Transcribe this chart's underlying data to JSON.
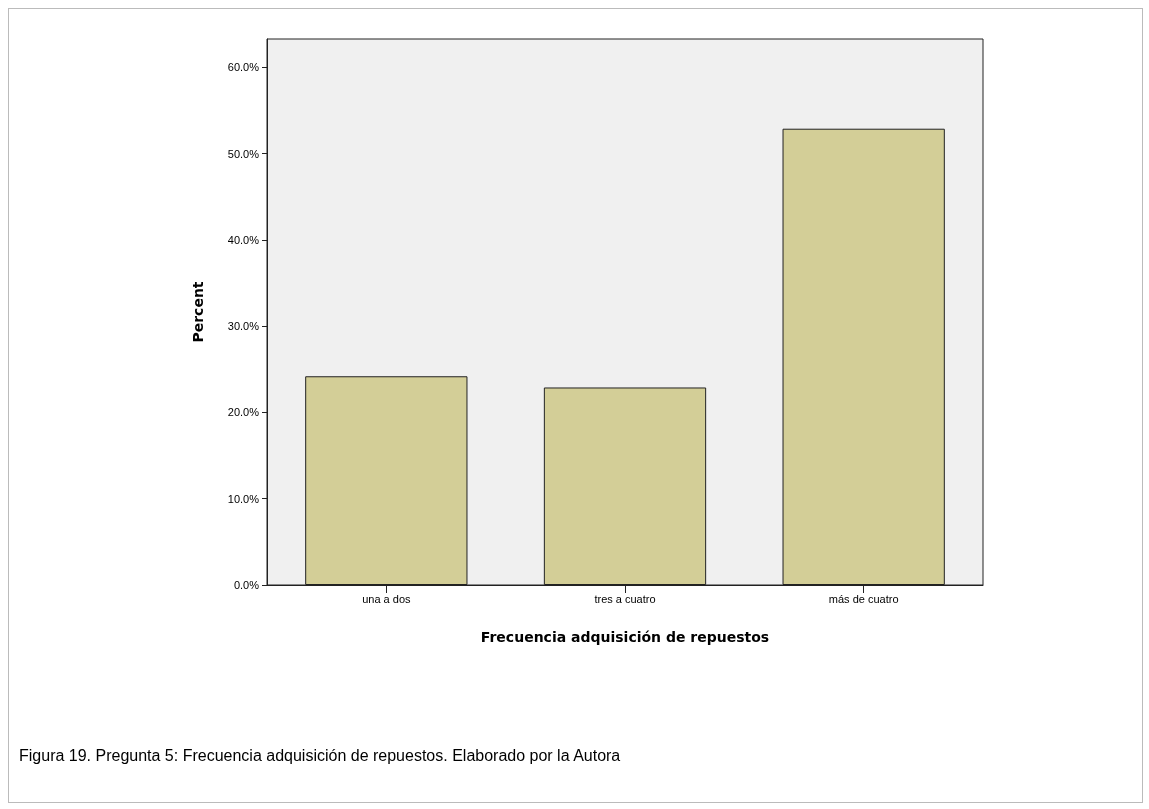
{
  "chart_data": {
    "type": "bar",
    "xlabel": "Frecuencia adquisición de repuestos",
    "ylabel": "Percent",
    "categories": [
      "una a dos",
      "tres a cuatro",
      "más de cuatro"
    ],
    "values": [
      24.2,
      22.9,
      52.9
    ],
    "color": "#d3ce97",
    "ylim": [
      0,
      63.3
    ],
    "yticks": [
      {
        "value": 0,
        "label": "0.0%"
      },
      {
        "value": 10,
        "label": "10.0%"
      },
      {
        "value": 20,
        "label": "20.0%"
      },
      {
        "value": 30,
        "label": "30.0%"
      },
      {
        "value": 40,
        "label": "40.0%"
      },
      {
        "value": 50,
        "label": "50.0%"
      },
      {
        "value": 60,
        "label": "60.0%"
      }
    ],
    "grid": false,
    "annotations": [
      "Figura 19. Pregunta 5: Frecuencia adquisición de repuestos. Elaborado por la Autora"
    ]
  }
}
